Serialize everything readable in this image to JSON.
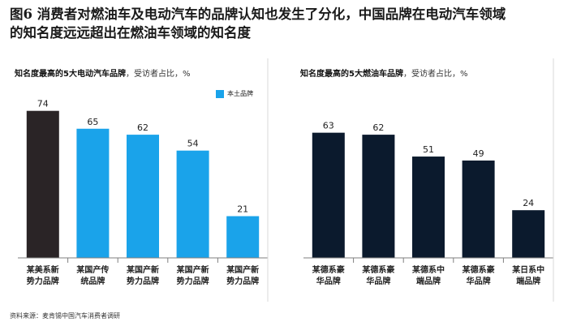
{
  "title_line1": "图6 消费者对燃油车及电动汽车的品牌认知也发生了分化，中国品牌在电动汽车领域",
  "title_line2": "的知名度远远超出在燃油车领域的知名度",
  "footer": "资料来源：麦肯锡中国汽车消费者调研",
  "colors": {
    "ev_foreign": "#2a2426",
    "ev_domestic": "#1aa3ea",
    "ice": "#0b1a2d",
    "label": "#222222",
    "axis": "#7f7f7f"
  },
  "chart_data": [
    {
      "type": "bar",
      "title": "知名度最高的5大电动汽车品牌",
      "subtitle": "，受访者占比，%",
      "legend": [
        {
          "name": "本土品牌",
          "color": "#1aa3ea"
        }
      ],
      "categories": [
        [
          "某美系新",
          "势力品牌"
        ],
        [
          "某国产传",
          "统品牌"
        ],
        [
          "某国产新",
          "势力品牌"
        ],
        [
          "某国产新",
          "势力品牌"
        ],
        [
          "某国产新",
          "势力品牌"
        ]
      ],
      "values": [
        74,
        65,
        62,
        54,
        21
      ],
      "domestic": [
        false,
        true,
        true,
        true,
        true
      ],
      "ylim": [
        0,
        80
      ]
    },
    {
      "type": "bar",
      "title": "知名度最高的5大燃油车品牌",
      "subtitle": "，受访者占比，%",
      "categories": [
        [
          "某德系豪",
          "华品牌"
        ],
        [
          "某德系豪",
          "华品牌"
        ],
        [
          "某德系中",
          "端品牌"
        ],
        [
          "某德系豪",
          "华品牌"
        ],
        [
          "某日系中",
          "端品牌"
        ]
      ],
      "values": [
        63,
        62,
        51,
        49,
        24
      ],
      "ylim": [
        0,
        80
      ]
    }
  ]
}
